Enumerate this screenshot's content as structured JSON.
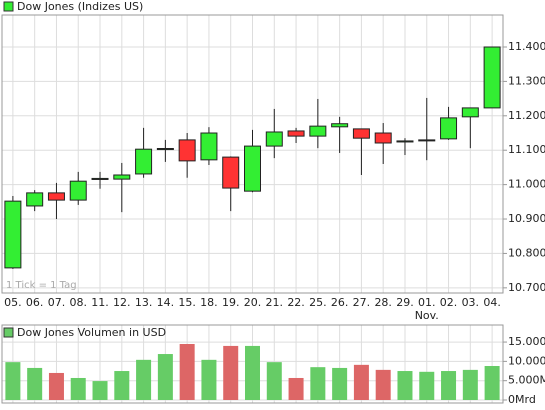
{
  "chart_data": [
    {
      "type": "candlestick",
      "title": "Dow Jones (Indizes US)",
      "legend_color": "#33ee33",
      "up_color": "#33ee33",
      "down_color": "#ff3333",
      "categories": [
        "05.",
        "06.",
        "07.",
        "08.",
        "11.",
        "12.",
        "13.",
        "14.",
        "15.",
        "18.",
        "19.",
        "20.",
        "21.",
        "22.",
        "25.",
        "26.",
        "27.",
        "28.",
        "29.",
        "01.",
        "02.",
        "03.",
        "04."
      ],
      "x_sublabels": [
        null,
        null,
        null,
        null,
        null,
        null,
        null,
        null,
        null,
        null,
        null,
        null,
        null,
        null,
        null,
        null,
        null,
        null,
        null,
        "Nov.",
        null,
        null,
        null
      ],
      "open": [
        10758,
        10938,
        10976,
        10955,
        11015,
        11016,
        11031,
        11102,
        11130,
        11072,
        11080,
        10981,
        11112,
        11156,
        11141,
        11168,
        11162,
        11150,
        11124,
        11128,
        11133,
        11197,
        11223
      ],
      "high": [
        10967,
        10984,
        11005,
        11037,
        11037,
        11063,
        11165,
        11130,
        11150,
        11167,
        11082,
        11159,
        11220,
        11165,
        11249,
        11197,
        11162,
        11179,
        11135,
        11252,
        11226,
        11223,
        11400
      ],
      "low": [
        10755,
        10923,
        10900,
        10941,
        10988,
        10920,
        11020,
        11066,
        11020,
        11057,
        10923,
        10978,
        11077,
        11121,
        11106,
        11092,
        11028,
        11060,
        11086,
        11071,
        11130,
        11106,
        11223
      ],
      "close": [
        10952,
        10976,
        10955,
        11010,
        11018,
        11028,
        11103,
        11105,
        11069,
        11150,
        10990,
        11112,
        11153,
        11141,
        11170,
        11177,
        11135,
        11121,
        11127,
        11130,
        11194,
        11223,
        11400
      ],
      "ylim": [
        10685,
        11493
      ],
      "yticks": [
        {
          "value": 10700,
          "label": "10.700"
        },
        {
          "value": 10800,
          "label": "10.800"
        },
        {
          "value": 10900,
          "label": "10.900"
        },
        {
          "value": 11000,
          "label": "11.000"
        },
        {
          "value": 11100,
          "label": "11.100"
        },
        {
          "value": 11200,
          "label": "11.200"
        },
        {
          "value": 11300,
          "label": "11.300"
        },
        {
          "value": 11400,
          "label": "11.400"
        }
      ],
      "annotation": "1 Tick = 1 Tag",
      "grid": true
    },
    {
      "type": "bar",
      "title": "Dow Jones Volumen in USD",
      "legend_color": "#66cc66",
      "values": [
        9800000,
        8300000,
        7000000,
        5700000,
        4900000,
        7500000,
        10400000,
        11900000,
        14500000,
        10400000,
        14000000,
        14000000,
        9800000,
        5700000,
        8500000,
        8300000,
        9100000,
        7800000,
        7500000,
        7300000,
        7500000,
        7800000,
        8800000
      ],
      "colors": [
        "#66cc66",
        "#66cc66",
        "#dd6666",
        "#66cc66",
        "#66cc66",
        "#66cc66",
        "#66cc66",
        "#66cc66",
        "#dd6666",
        "#66cc66",
        "#dd6666",
        "#66cc66",
        "#66cc66",
        "#dd6666",
        "#66cc66",
        "#66cc66",
        "#dd6666",
        "#dd6666",
        "#66cc66",
        "#66cc66",
        "#66cc66",
        "#66cc66",
        "#66cc66"
      ],
      "ylim": [
        0,
        18900000
      ],
      "yticks": [
        {
          "value": 0,
          "label": "0Mrd"
        },
        {
          "value": 5000000,
          "label": "5.000M"
        },
        {
          "value": 10000000,
          "label": "10.000M"
        },
        {
          "value": 15000000,
          "label": "15.000M"
        }
      ],
      "grid": true
    }
  ]
}
